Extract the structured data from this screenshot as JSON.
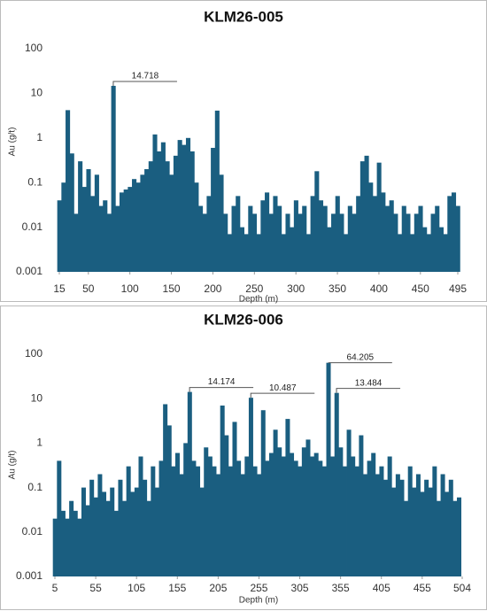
{
  "chart_data": [
    {
      "type": "bar",
      "title": "KLM26-005",
      "x_label": "Depth (m)",
      "y_label": "Au (g/t)",
      "color": "#1a5e80",
      "log_scale": true,
      "xlim": [
        15,
        495
      ],
      "xticks": [
        15,
        50,
        100,
        150,
        200,
        250,
        300,
        350,
        400,
        450,
        495
      ],
      "ylim": [
        0.001,
        100
      ],
      "yticks": [
        0.001,
        0.01,
        0.1,
        1,
        10,
        100
      ],
      "x": [
        15,
        20,
        25,
        30,
        35,
        40,
        45,
        50,
        55,
        60,
        65,
        70,
        75,
        80,
        85,
        90,
        95,
        100,
        105,
        110,
        115,
        120,
        125,
        130,
        135,
        140,
        145,
        150,
        155,
        160,
        165,
        170,
        175,
        180,
        185,
        190,
        195,
        200,
        205,
        210,
        215,
        220,
        225,
        230,
        235,
        240,
        245,
        250,
        255,
        260,
        265,
        270,
        275,
        280,
        285,
        290,
        295,
        300,
        305,
        310,
        315,
        320,
        325,
        330,
        335,
        340,
        345,
        350,
        355,
        360,
        365,
        370,
        375,
        380,
        385,
        390,
        395,
        400,
        405,
        410,
        415,
        420,
        425,
        430,
        435,
        440,
        445,
        450,
        455,
        460,
        465,
        470,
        475,
        480,
        485,
        490,
        495
      ],
      "values": [
        0.04,
        0.1,
        4.2,
        0.45,
        0.02,
        0.3,
        0.08,
        0.2,
        0.05,
        0.15,
        0.03,
        0.04,
        0.02,
        14.718,
        0.03,
        0.06,
        0.07,
        0.08,
        0.12,
        0.1,
        0.15,
        0.2,
        0.3,
        1.2,
        0.5,
        0.8,
        0.3,
        0.15,
        0.4,
        0.9,
        0.7,
        1.0,
        0.5,
        0.1,
        0.03,
        0.02,
        0.05,
        0.6,
        4.1,
        0.15,
        0.02,
        0.007,
        0.03,
        0.05,
        0.01,
        0.007,
        0.03,
        0.02,
        0.007,
        0.04,
        0.06,
        0.02,
        0.05,
        0.03,
        0.007,
        0.02,
        0.01,
        0.04,
        0.02,
        0.03,
        0.007,
        0.05,
        0.18,
        0.04,
        0.03,
        0.01,
        0.02,
        0.05,
        0.02,
        0.007,
        0.03,
        0.02,
        0.05,
        0.3,
        0.4,
        0.1,
        0.05,
        0.28,
        0.06,
        0.03,
        0.04,
        0.02,
        0.007,
        0.03,
        0.02,
        0.007,
        0.02,
        0.03,
        0.01,
        0.007,
        0.02,
        0.03,
        0.01,
        0.007,
        0.05,
        0.06,
        0.03
      ],
      "value_labels": [
        null,
        null,
        null,
        null,
        null,
        null,
        null,
        null,
        null,
        null,
        null,
        null,
        null,
        "14.718",
        null,
        null,
        null,
        null,
        null,
        null,
        null,
        null,
        null,
        null,
        null,
        null,
        null,
        null,
        null,
        null,
        null,
        null,
        null,
        null,
        null,
        null,
        null,
        null,
        null,
        null,
        null,
        null,
        null,
        null,
        null,
        null,
        null,
        null,
        null,
        null,
        null,
        null,
        null,
        null,
        null,
        null,
        null,
        null,
        null,
        null,
        null,
        null,
        null,
        null,
        null,
        null,
        null,
        null,
        null,
        null,
        null,
        null,
        null,
        null,
        null,
        null,
        null,
        null,
        null,
        null,
        null,
        null,
        null,
        null,
        null,
        null,
        null,
        null,
        null,
        null,
        null,
        null,
        null,
        null,
        null,
        null,
        null
      ]
    },
    {
      "type": "bar",
      "title": "KLM26-006",
      "x_label": "Depth (m)",
      "y_label": "Au (g/t)",
      "color": "#1a5e80",
      "log_scale": true,
      "xlim": [
        5,
        504
      ],
      "xticks": [
        5,
        55,
        105,
        155,
        205,
        255,
        305,
        355,
        405,
        455,
        504
      ],
      "ylim": [
        0.001,
        100
      ],
      "yticks": [
        0.001,
        0.01,
        0.1,
        1,
        10,
        100
      ],
      "x": [
        5,
        10,
        15,
        20,
        25,
        30,
        35,
        40,
        45,
        50,
        55,
        60,
        65,
        70,
        75,
        80,
        85,
        90,
        95,
        100,
        105,
        110,
        115,
        120,
        125,
        130,
        135,
        140,
        145,
        150,
        155,
        160,
        165,
        170,
        175,
        180,
        185,
        190,
        195,
        200,
        205,
        210,
        215,
        220,
        225,
        230,
        235,
        240,
        245,
        250,
        255,
        260,
        265,
        270,
        275,
        280,
        285,
        290,
        295,
        300,
        305,
        310,
        315,
        320,
        325,
        330,
        335,
        340,
        345,
        350,
        355,
        360,
        365,
        370,
        375,
        380,
        385,
        390,
        395,
        400,
        405,
        410,
        415,
        420,
        425,
        430,
        435,
        440,
        445,
        450,
        455,
        460,
        465,
        470,
        475,
        480,
        485,
        490,
        495,
        500
      ],
      "values": [
        0.02,
        0.4,
        0.03,
        0.02,
        0.05,
        0.03,
        0.02,
        0.1,
        0.04,
        0.15,
        0.06,
        0.2,
        0.08,
        0.05,
        0.1,
        0.03,
        0.15,
        0.05,
        0.3,
        0.08,
        0.1,
        0.5,
        0.15,
        0.05,
        0.3,
        0.1,
        0.4,
        7.5,
        2.5,
        0.3,
        0.6,
        0.2,
        1.0,
        14.174,
        0.4,
        0.3,
        0.1,
        0.8,
        0.5,
        0.3,
        0.2,
        7.0,
        1.5,
        0.3,
        3.0,
        0.4,
        0.2,
        0.5,
        10.487,
        0.3,
        0.2,
        5.5,
        0.4,
        0.6,
        2.0,
        0.8,
        0.5,
        3.5,
        0.6,
        0.4,
        0.3,
        0.8,
        1.2,
        0.5,
        0.6,
        0.4,
        0.3,
        64.205,
        0.5,
        13.484,
        0.8,
        0.3,
        2.0,
        0.5,
        0.3,
        1.5,
        0.2,
        0.4,
        0.6,
        0.2,
        0.3,
        0.15,
        0.5,
        0.1,
        0.2,
        0.15,
        0.05,
        0.3,
        0.1,
        0.2,
        0.08,
        0.15,
        0.1,
        0.3,
        0.05,
        0.2,
        0.08,
        0.15,
        0.05,
        0.06
      ],
      "value_labels": [
        null,
        null,
        null,
        null,
        null,
        null,
        null,
        null,
        null,
        null,
        null,
        null,
        null,
        null,
        null,
        null,
        null,
        null,
        null,
        null,
        null,
        null,
        null,
        null,
        null,
        null,
        null,
        null,
        null,
        null,
        null,
        null,
        null,
        "14.174",
        null,
        null,
        null,
        null,
        null,
        null,
        null,
        null,
        null,
        null,
        null,
        null,
        null,
        null,
        "10.487",
        null,
        null,
        null,
        null,
        null,
        null,
        null,
        null,
        null,
        null,
        null,
        null,
        null,
        null,
        null,
        null,
        null,
        null,
        "64.205",
        null,
        "13.484",
        null,
        null,
        null,
        null,
        null,
        null,
        null,
        null,
        null,
        null,
        null,
        null,
        null,
        null,
        null,
        null,
        null,
        null,
        null,
        null,
        null,
        null,
        null,
        null,
        null,
        null,
        null,
        null,
        null,
        null
      ]
    }
  ]
}
